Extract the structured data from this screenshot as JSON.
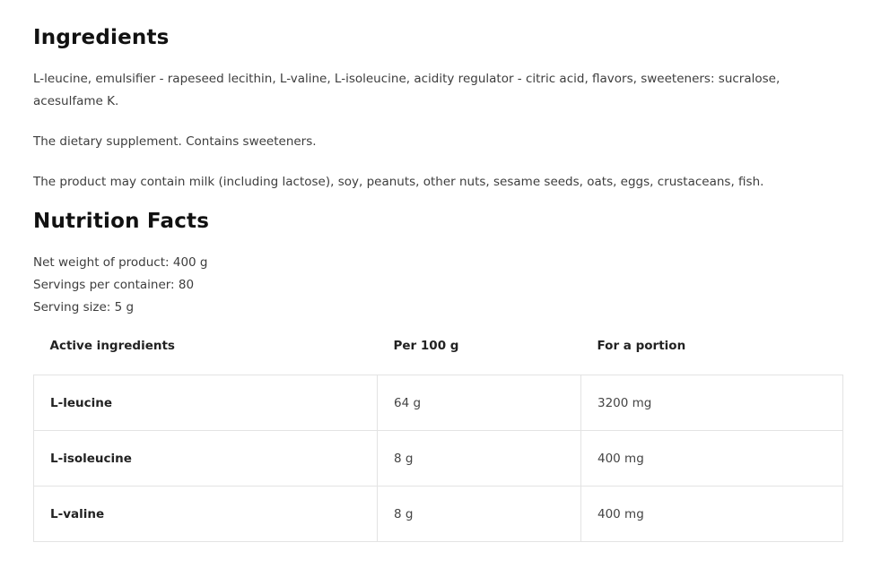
{
  "ingredients": {
    "title": "Ingredients",
    "paragraphs": [
      "L-leucine, emulsifier - rapeseed lecithin, L-valine, L-isoleucine, acidity regulator - citric acid, flavors, sweeteners: sucralose, acesulfame K.",
      "The dietary supplement. Contains sweeteners.",
      "The product may contain milk (including lactose), soy, peanuts, other nuts, sesame seeds, oats, eggs, crustaceans, fish."
    ]
  },
  "nutrition": {
    "title": "Nutrition Facts",
    "info": [
      "Net weight of product: 400 g",
      "Servings per container: 80",
      "Serving size: 5 g"
    ],
    "headers": [
      "Active ingredients",
      "Per 100 g",
      "For a portion"
    ],
    "rows": [
      [
        "L-leucine",
        "64 g",
        "3200 mg"
      ],
      [
        "L-isoleucine",
        "8 g",
        "400 mg"
      ],
      [
        "L-valine",
        "8 g",
        "400 mg"
      ]
    ]
  }
}
